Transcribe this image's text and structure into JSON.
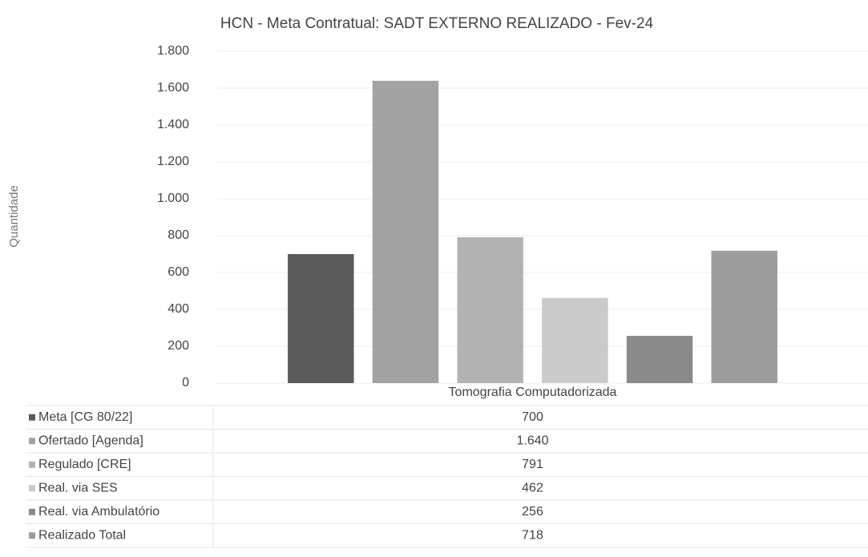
{
  "chart_data": {
    "type": "bar",
    "title": "HCN - Meta Contratual: SADT EXTERNO REALIZADO - Fev-24",
    "y_label": "Quantidade",
    "categories": [
      "Tomografia Computadorizada"
    ],
    "series": [
      {
        "name": "Meta [CG 80/22]",
        "color": "#5a5a5a",
        "values": [
          700
        ]
      },
      {
        "name": "Ofertado [Agenda]",
        "color": "#a2a2a2",
        "values": [
          1640
        ],
        "value_labels": [
          "1.640"
        ]
      },
      {
        "name": "Regulado [CRE]",
        "color": "#b2b2b2",
        "values": [
          791
        ]
      },
      {
        "name": "Real. via SES",
        "color": "#cacaca",
        "values": [
          462
        ]
      },
      {
        "name": "Real. via Ambulatório",
        "color": "#8a8a8a",
        "values": [
          256
        ]
      },
      {
        "name": "Realizado Total",
        "color": "#9c9c9c",
        "values": [
          718
        ]
      }
    ],
    "ylim": [
      0,
      1800
    ],
    "yticks": [
      0,
      200,
      400,
      600,
      800,
      {
        "value": 1000,
        "label": "1.000"
      },
      {
        "value": 1200,
        "label": "1.200"
      },
      {
        "value": 1400,
        "label": "1.400"
      },
      {
        "value": 1600,
        "label": "1.600"
      },
      {
        "value": 1800,
        "label": "1.800"
      }
    ],
    "grid": true,
    "data_table": true
  }
}
